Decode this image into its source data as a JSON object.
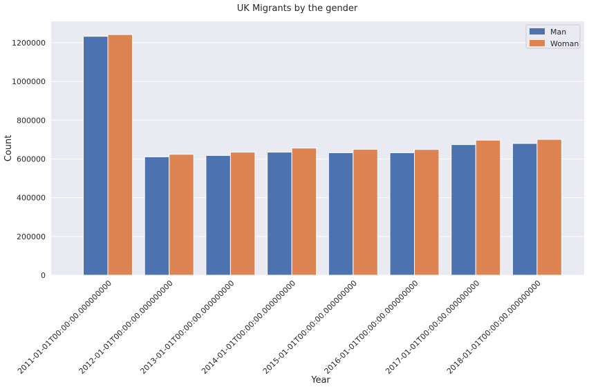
{
  "chart_data": {
    "type": "bar",
    "title": "UK Migrants by the gender",
    "xlabel": "Year",
    "ylabel": "Count",
    "categories": [
      "2011-01-01T00:00:00.000000000",
      "2012-01-01T00:00:00.000000000",
      "2013-01-01T00:00:00.000000000",
      "2014-01-01T00:00:00.000000000",
      "2015-01-01T00:00:00.000000000",
      "2016-01-01T00:00:00.000000000",
      "2017-01-01T00:00:00.000000000",
      "2018-01-01T00:00:00.000000000"
    ],
    "series": [
      {
        "name": "Man",
        "color": "#4C72B0",
        "values": [
          1233000,
          611000,
          618000,
          635000,
          632000,
          632000,
          674000,
          680000
        ]
      },
      {
        "name": "Woman",
        "color": "#DD8452",
        "values": [
          1242000,
          624000,
          635000,
          656000,
          650000,
          649000,
          697000,
          701000
        ]
      }
    ],
    "ylim": [
      0,
      1310000
    ],
    "yticks": [
      "0",
      "200000",
      "400000",
      "600000",
      "800000",
      "1000000",
      "1200000"
    ],
    "grid": true,
    "legend_position": "top-right",
    "background_color": "#EAEAF2"
  }
}
